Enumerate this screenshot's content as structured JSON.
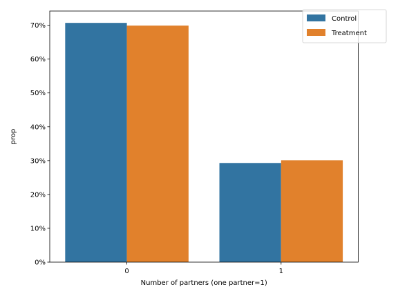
{
  "chart_data": {
    "type": "bar",
    "title": "",
    "xlabel": "Number of partners (one partner=1)",
    "ylabel": "prop",
    "categories": [
      "0",
      "1"
    ],
    "series": [
      {
        "name": "Control",
        "color": "#3274a1",
        "values": [
          0.707,
          0.293
        ]
      },
      {
        "name": "Treatment",
        "color": "#e1812c",
        "values": [
          0.699,
          0.301
        ]
      }
    ],
    "ylim": [
      0,
      0.742
    ],
    "yticks": [
      0,
      0.1,
      0.2,
      0.3,
      0.4,
      0.5,
      0.6,
      0.7
    ],
    "ytick_labels": [
      "0%",
      "10%",
      "20%",
      "30%",
      "40%",
      "50%",
      "60%",
      "70%"
    ],
    "legend_position": "top-right",
    "grid": false
  }
}
